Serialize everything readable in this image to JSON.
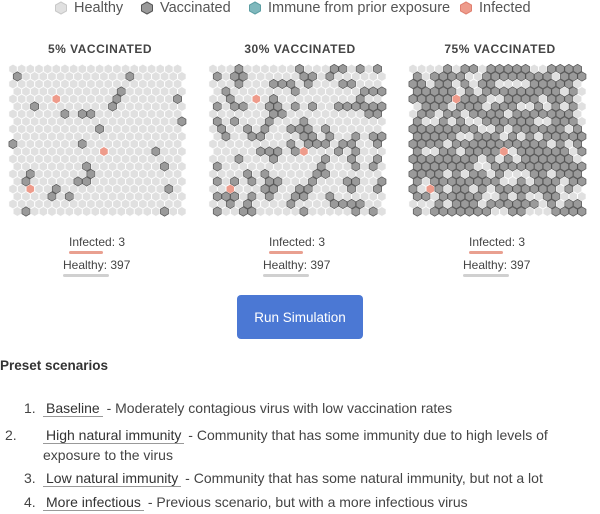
{
  "legend": [
    {
      "label": "Healthy",
      "color": "#e0e0e0",
      "stroke": "#c8c8c8"
    },
    {
      "label": "Vaccinated",
      "color": "#9a9a9a",
      "stroke": "#555555"
    },
    {
      "label": "Immune from prior exposure",
      "color": "#7fb8bd",
      "stroke": "#5c9ea3"
    },
    {
      "label": "Infected",
      "color": "#ee9b8b",
      "stroke": "#e08070"
    }
  ],
  "panels": [
    {
      "title": "5% VACCINATED",
      "vaccinated_fraction": 0.05,
      "infected_label": "Infected:",
      "infected_value": "3",
      "healthy_label": "Healthy:",
      "healthy_value": "397"
    },
    {
      "title": "30% VACCINATED",
      "vaccinated_fraction": 0.3,
      "infected_label": "Infected:",
      "infected_value": "3",
      "healthy_label": "Healthy:",
      "healthy_value": "397"
    },
    {
      "title": "75% VACCINATED",
      "vaccinated_fraction": 0.75,
      "infected_label": "Infected:",
      "infected_value": "3",
      "healthy_label": "Healthy:",
      "healthy_value": "397"
    }
  ],
  "run_button": "Run Simulation",
  "preset_title": "Preset scenarios",
  "scenarios": [
    {
      "num": "1.",
      "name": "Baseline",
      "desc": " - Moderately contagious virus with low vaccination rates"
    },
    {
      "num": "2.",
      "name": "High natural immunity",
      "desc": " - Community that has some immunity due to high levels of exposure to the virus"
    },
    {
      "num": "3.",
      "name": "Low natural immunity",
      "desc": " - Community that has some natural immunity, but not a lot"
    },
    {
      "num": "4.",
      "name": "More infectious",
      "desc": " - Previous scenario, but with a more infectious virus"
    }
  ],
  "colors": {
    "button": "#4b78d4",
    "infected_bar": "#e9a090",
    "healthy_bar": "#d0d0d0"
  }
}
